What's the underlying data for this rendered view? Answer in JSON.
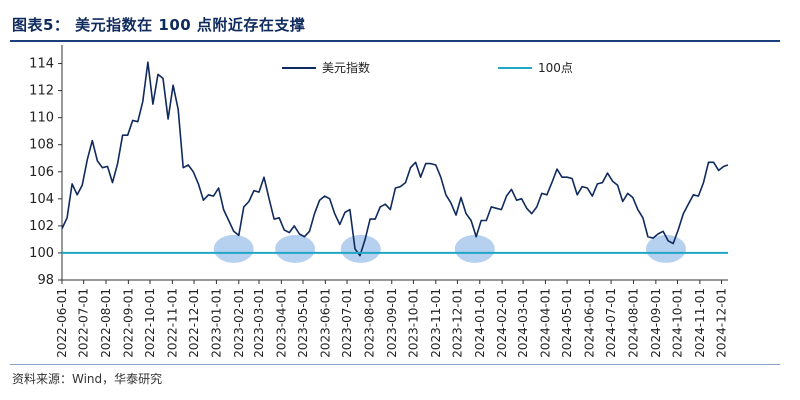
{
  "figure": {
    "title": "图表5：  美元指数在 100 点附近存在支撑",
    "source": "资料来源：Wind，华泰研究"
  },
  "colors": {
    "dxy": "#0f2a5c",
    "line100": "#21a6c8",
    "highlight": "#a9c8ec",
    "title": "#0f2a5c"
  },
  "chart_data": {
    "type": "line",
    "title": "",
    "xlabel": "",
    "ylabel": "",
    "ylim": [
      98,
      115
    ],
    "yticks": [
      98,
      100,
      102,
      104,
      106,
      108,
      110,
      112,
      114
    ],
    "xlim": [
      "2022-06-01",
      "2024-12-10"
    ],
    "legend_position": "top",
    "x_ticks": [
      "2022-06-01",
      "2022-07-01",
      "2022-08-01",
      "2022-09-01",
      "2022-10-01",
      "2022-11-01",
      "2022-12-01",
      "2023-01-01",
      "2023-02-01",
      "2023-03-01",
      "2023-04-01",
      "2023-05-01",
      "2023-06-01",
      "2023-07-01",
      "2023-08-01",
      "2023-09-01",
      "2023-10-01",
      "2023-11-01",
      "2023-12-01",
      "2024-01-01",
      "2024-02-01",
      "2024-03-01",
      "2024-04-01",
      "2024-05-01",
      "2024-06-01",
      "2024-07-01",
      "2024-08-01",
      "2024-09-01",
      "2024-10-01",
      "2024-11-01",
      "2024-12-01"
    ],
    "series": [
      {
        "name": "美元指数",
        "points": [
          [
            "2022-06-01",
            101.8
          ],
          [
            "2022-06-08",
            102.6
          ],
          [
            "2022-06-15",
            105.1
          ],
          [
            "2022-06-22",
            104.3
          ],
          [
            "2022-06-29",
            105.0
          ],
          [
            "2022-07-06",
            106.9
          ],
          [
            "2022-07-13",
            108.3
          ],
          [
            "2022-07-20",
            106.8
          ],
          [
            "2022-07-27",
            106.3
          ],
          [
            "2022-08-03",
            106.4
          ],
          [
            "2022-08-10",
            105.2
          ],
          [
            "2022-08-17",
            106.6
          ],
          [
            "2022-08-24",
            108.7
          ],
          [
            "2022-08-31",
            108.7
          ],
          [
            "2022-09-07",
            109.8
          ],
          [
            "2022-09-14",
            109.7
          ],
          [
            "2022-09-21",
            111.2
          ],
          [
            "2022-09-28",
            114.1
          ],
          [
            "2022-10-05",
            111.0
          ],
          [
            "2022-10-12",
            113.2
          ],
          [
            "2022-10-19",
            112.9
          ],
          [
            "2022-10-26",
            109.9
          ],
          [
            "2022-11-02",
            112.4
          ],
          [
            "2022-11-09",
            110.6
          ],
          [
            "2022-11-16",
            106.3
          ],
          [
            "2022-11-23",
            106.5
          ],
          [
            "2022-11-30",
            106.0
          ],
          [
            "2022-12-07",
            105.1
          ],
          [
            "2022-12-14",
            103.9
          ],
          [
            "2022-12-21",
            104.3
          ],
          [
            "2022-12-28",
            104.2
          ],
          [
            "2023-01-04",
            104.8
          ],
          [
            "2023-01-11",
            103.2
          ],
          [
            "2023-01-18",
            102.4
          ],
          [
            "2023-01-25",
            101.6
          ],
          [
            "2023-02-01",
            101.3
          ],
          [
            "2023-02-08",
            103.4
          ],
          [
            "2023-02-15",
            103.8
          ],
          [
            "2023-02-22",
            104.6
          ],
          [
            "2023-03-01",
            104.5
          ],
          [
            "2023-03-08",
            105.6
          ],
          [
            "2023-03-15",
            104.0
          ],
          [
            "2023-03-22",
            102.5
          ],
          [
            "2023-03-29",
            102.6
          ],
          [
            "2023-04-05",
            101.7
          ],
          [
            "2023-04-12",
            101.5
          ],
          [
            "2023-04-19",
            102.0
          ],
          [
            "2023-04-26",
            101.4
          ],
          [
            "2023-05-03",
            101.2
          ],
          [
            "2023-05-10",
            101.6
          ],
          [
            "2023-05-17",
            102.9
          ],
          [
            "2023-05-24",
            103.9
          ],
          [
            "2023-05-31",
            104.2
          ],
          [
            "2023-06-07",
            104.0
          ],
          [
            "2023-06-14",
            102.9
          ],
          [
            "2023-06-21",
            102.1
          ],
          [
            "2023-06-28",
            103.0
          ],
          [
            "2023-07-05",
            103.2
          ],
          [
            "2023-07-12",
            100.3
          ],
          [
            "2023-07-19",
            99.8
          ],
          [
            "2023-07-26",
            101.0
          ],
          [
            "2023-08-02",
            102.5
          ],
          [
            "2023-08-09",
            102.5
          ],
          [
            "2023-08-16",
            103.4
          ],
          [
            "2023-08-23",
            103.6
          ],
          [
            "2023-08-30",
            103.2
          ],
          [
            "2023-09-06",
            104.8
          ],
          [
            "2023-09-13",
            104.9
          ],
          [
            "2023-09-20",
            105.2
          ],
          [
            "2023-09-27",
            106.3
          ],
          [
            "2023-10-04",
            106.7
          ],
          [
            "2023-10-11",
            105.6
          ],
          [
            "2023-10-18",
            106.6
          ],
          [
            "2023-10-25",
            106.6
          ],
          [
            "2023-11-01",
            106.5
          ],
          [
            "2023-11-08",
            105.6
          ],
          [
            "2023-11-15",
            104.3
          ],
          [
            "2023-11-22",
            103.7
          ],
          [
            "2023-11-29",
            102.8
          ],
          [
            "2023-12-06",
            104.1
          ],
          [
            "2023-12-13",
            102.9
          ],
          [
            "2023-12-20",
            102.4
          ],
          [
            "2023-12-27",
            101.2
          ],
          [
            "2024-01-03",
            102.4
          ],
          [
            "2024-01-10",
            102.4
          ],
          [
            "2024-01-17",
            103.4
          ],
          [
            "2024-01-24",
            103.3
          ],
          [
            "2024-01-31",
            103.2
          ],
          [
            "2024-02-07",
            104.2
          ],
          [
            "2024-02-14",
            104.7
          ],
          [
            "2024-02-21",
            103.9
          ],
          [
            "2024-02-28",
            104.0
          ],
          [
            "2024-03-06",
            103.3
          ],
          [
            "2024-03-13",
            102.9
          ],
          [
            "2024-03-20",
            103.4
          ],
          [
            "2024-03-27",
            104.4
          ],
          [
            "2024-04-03",
            104.3
          ],
          [
            "2024-04-10",
            105.2
          ],
          [
            "2024-04-17",
            106.2
          ],
          [
            "2024-04-24",
            105.6
          ],
          [
            "2024-05-01",
            105.6
          ],
          [
            "2024-05-08",
            105.5
          ],
          [
            "2024-05-15",
            104.3
          ],
          [
            "2024-05-22",
            104.9
          ],
          [
            "2024-05-29",
            104.8
          ],
          [
            "2024-06-05",
            104.2
          ],
          [
            "2024-06-12",
            105.1
          ],
          [
            "2024-06-19",
            105.2
          ],
          [
            "2024-06-26",
            105.9
          ],
          [
            "2024-07-03",
            105.3
          ],
          [
            "2024-07-10",
            105.0
          ],
          [
            "2024-07-17",
            103.8
          ],
          [
            "2024-07-24",
            104.4
          ],
          [
            "2024-07-31",
            104.1
          ],
          [
            "2024-08-07",
            103.2
          ],
          [
            "2024-08-14",
            102.6
          ],
          [
            "2024-08-21",
            101.2
          ],
          [
            "2024-08-28",
            101.1
          ],
          [
            "2024-09-04",
            101.4
          ],
          [
            "2024-09-11",
            101.6
          ],
          [
            "2024-09-18",
            100.9
          ],
          [
            "2024-09-25",
            100.7
          ],
          [
            "2024-10-02",
            101.7
          ],
          [
            "2024-10-09",
            102.9
          ],
          [
            "2024-10-16",
            103.6
          ],
          [
            "2024-10-23",
            104.3
          ],
          [
            "2024-10-30",
            104.2
          ],
          [
            "2024-11-06",
            105.2
          ],
          [
            "2024-11-13",
            106.7
          ],
          [
            "2024-11-20",
            106.7
          ],
          [
            "2024-11-27",
            106.1
          ],
          [
            "2024-12-04",
            106.4
          ],
          [
            "2024-12-10",
            106.5
          ]
        ]
      },
      {
        "name": "100点",
        "points": [
          [
            "2022-06-01",
            100
          ],
          [
            "2024-12-10",
            100
          ]
        ]
      }
    ],
    "highlight_periods": [
      {
        "center": "2023-01-25",
        "value": 100.3
      },
      {
        "center": "2023-04-20",
        "value": 100.3
      },
      {
        "center": "2023-07-20",
        "value": 100.3
      },
      {
        "center": "2023-12-25",
        "value": 100.3
      },
      {
        "center": "2024-09-15",
        "value": 100.3
      }
    ]
  }
}
